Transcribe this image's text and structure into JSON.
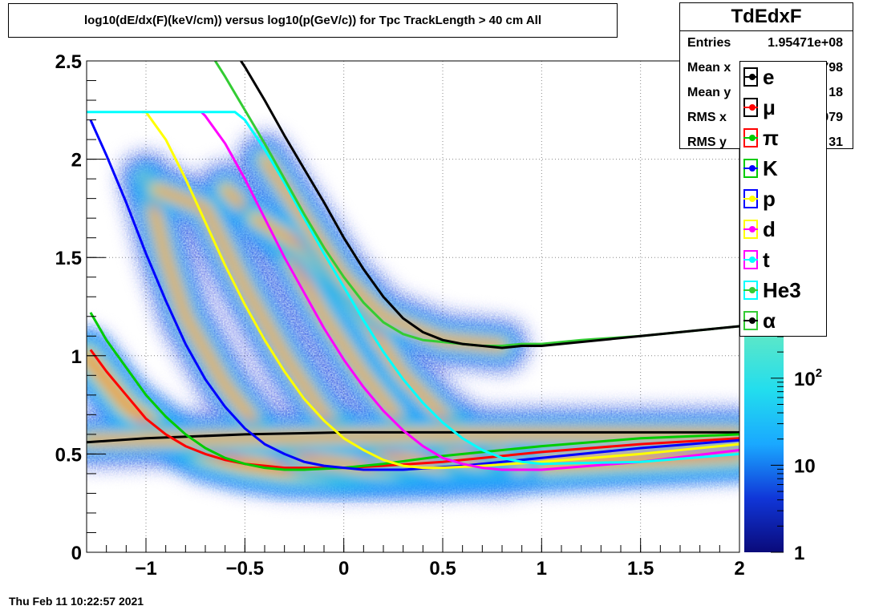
{
  "title": "log10(dE/dx(F)(keV/cm)) versus log10(p(GeV/c)) for Tpc TrackLength > 40 cm All",
  "stats": {
    "name": "TdEdxF",
    "rows": [
      {
        "key": "Entries",
        "value": "1.95471e+08"
      },
      {
        "key": "Mean x",
        "value": "798"
      },
      {
        "key": "Mean y",
        "value": "18"
      },
      {
        "key": "RMS x",
        "value": "979"
      },
      {
        "key": "RMS y",
        "value": "31"
      }
    ]
  },
  "timestamp": "Thu Feb 11 10:22:57 2021",
  "chart_data": {
    "type": "heatmap",
    "title": "log10(dE/dx(F)(keV/cm)) versus log10(p(GeV/c)) for Tpc TrackLength > 40 cm All",
    "xlim": [
      -1.3,
      2.0
    ],
    "ylim": [
      0,
      2.5
    ],
    "x_ticks": [
      {
        "value": -1,
        "label": "−1"
      },
      {
        "value": -0.5,
        "label": "−0.5"
      },
      {
        "value": 0,
        "label": "0"
      },
      {
        "value": 0.5,
        "label": "0.5"
      },
      {
        "value": 1,
        "label": "1"
      },
      {
        "value": 1.5,
        "label": "1.5"
      },
      {
        "value": 2,
        "label": "2"
      }
    ],
    "y_ticks": [
      {
        "value": 0,
        "label": "0"
      },
      {
        "value": 0.5,
        "label": "0.5"
      },
      {
        "value": 1,
        "label": "1"
      },
      {
        "value": 1.5,
        "label": "1.5"
      },
      {
        "value": 2,
        "label": "2"
      },
      {
        "value": 2.5,
        "label": "2.5"
      }
    ],
    "grid": true,
    "z_scale": "log",
    "colorbar_ticks": [
      {
        "value": 1,
        "label": "1"
      },
      {
        "value": 10,
        "label": "10"
      },
      {
        "value": 100,
        "label": "10",
        "sup": "2"
      }
    ],
    "density_bands": [
      {
        "name": "pi",
        "center": [
          [
            -1.3,
            1.0
          ],
          [
            -1.1,
            0.75
          ],
          [
            -0.9,
            0.6
          ],
          [
            -0.7,
            0.5
          ],
          [
            -0.5,
            0.45
          ],
          [
            -0.3,
            0.42
          ],
          [
            0.0,
            0.41
          ],
          [
            0.5,
            0.42
          ],
          [
            1.0,
            0.45
          ],
          [
            2.0,
            0.5
          ]
        ]
      },
      {
        "name": "K",
        "center": [
          [
            -1.0,
            1.9
          ],
          [
            -0.9,
            1.5
          ],
          [
            -0.8,
            1.2
          ],
          [
            -0.6,
            0.85
          ],
          [
            -0.4,
            0.6
          ],
          [
            -0.2,
            0.48
          ],
          [
            0.2,
            0.42
          ],
          [
            0.7,
            0.43
          ]
        ]
      },
      {
        "name": "p",
        "center": [
          [
            -0.95,
            1.85
          ],
          [
            -0.7,
            1.75
          ],
          [
            -0.5,
            1.35
          ],
          [
            -0.3,
            1.0
          ],
          [
            -0.1,
            0.7
          ],
          [
            0.2,
            0.5
          ],
          [
            0.5,
            0.44
          ],
          [
            0.8,
            0.42
          ]
        ]
      },
      {
        "name": "d",
        "center": [
          [
            -0.6,
            1.85
          ],
          [
            -0.3,
            1.55
          ],
          [
            -0.1,
            1.2
          ],
          [
            0.1,
            0.9
          ],
          [
            0.3,
            0.65
          ],
          [
            0.6,
            0.48
          ],
          [
            0.9,
            0.44
          ]
        ]
      },
      {
        "name": "t",
        "center": [
          [
            -0.45,
            1.7
          ],
          [
            -0.2,
            1.55
          ],
          [
            0.1,
            1.2
          ],
          [
            0.3,
            0.9
          ],
          [
            0.5,
            0.7
          ],
          [
            0.8,
            0.5
          ]
        ]
      },
      {
        "name": "He3",
        "center": [
          [
            -0.4,
            2.0
          ],
          [
            -0.2,
            1.7
          ],
          [
            0.0,
            1.4
          ],
          [
            0.2,
            1.2
          ],
          [
            0.5,
            1.08
          ],
          [
            0.8,
            1.05
          ]
        ]
      },
      {
        "name": "e",
        "center": [
          [
            -1.3,
            0.57
          ],
          [
            -0.5,
            0.58
          ],
          [
            0.5,
            0.6
          ],
          [
            2.0,
            0.6
          ]
        ]
      }
    ],
    "series": [
      {
        "name": "e",
        "color": "#000000",
        "x": [
          -1.3,
          -1.0,
          -0.5,
          0.0,
          0.5,
          1.0,
          1.5,
          2.0
        ],
        "y": [
          0.56,
          0.58,
          0.6,
          0.61,
          0.61,
          0.61,
          0.61,
          0.61
        ]
      },
      {
        "name": "μ",
        "color": "#ff0000",
        "x": [
          -1.28,
          -1.2,
          -1.1,
          -1.0,
          -0.9,
          -0.8,
          -0.7,
          -0.6,
          -0.5,
          -0.4,
          -0.3,
          -0.2,
          0.0,
          0.2,
          0.5,
          1.0,
          1.5,
          2.0
        ],
        "y": [
          1.03,
          0.92,
          0.8,
          0.68,
          0.6,
          0.54,
          0.5,
          0.47,
          0.45,
          0.44,
          0.43,
          0.43,
          0.43,
          0.44,
          0.46,
          0.51,
          0.55,
          0.58
        ]
      },
      {
        "name": "π",
        "color": "#00cc00",
        "x": [
          -1.28,
          -1.2,
          -1.1,
          -1.0,
          -0.9,
          -0.8,
          -0.7,
          -0.6,
          -0.5,
          -0.4,
          -0.3,
          -0.2,
          0.0,
          0.2,
          0.5,
          1.0,
          1.5,
          2.0
        ],
        "y": [
          1.22,
          1.08,
          0.94,
          0.8,
          0.69,
          0.6,
          0.53,
          0.48,
          0.45,
          0.43,
          0.42,
          0.42,
          0.43,
          0.45,
          0.49,
          0.54,
          0.58,
          0.6
        ]
      },
      {
        "name": "K",
        "color": "#0000ff",
        "x": [
          -1.28,
          -1.2,
          -1.1,
          -1.0,
          -0.9,
          -0.8,
          -0.7,
          -0.6,
          -0.5,
          -0.4,
          -0.3,
          -0.2,
          -0.1,
          0.0,
          0.1,
          0.3,
          0.6,
          1.0,
          1.5,
          2.0
        ],
        "y": [
          2.2,
          2.02,
          1.78,
          1.52,
          1.28,
          1.06,
          0.88,
          0.74,
          0.63,
          0.55,
          0.5,
          0.46,
          0.44,
          0.43,
          0.42,
          0.42,
          0.44,
          0.48,
          0.53,
          0.57
        ]
      },
      {
        "name": "p",
        "color": "#ffff00",
        "x": [
          -1.02,
          -1.0,
          -0.9,
          -0.8,
          -0.7,
          -0.6,
          -0.5,
          -0.4,
          -0.3,
          -0.2,
          -0.1,
          0.0,
          0.1,
          0.2,
          0.3,
          0.4,
          0.5,
          0.7,
          1.0,
          1.5,
          2.0
        ],
        "y": [
          2.24,
          2.24,
          2.1,
          1.9,
          1.68,
          1.46,
          1.26,
          1.08,
          0.92,
          0.78,
          0.67,
          0.58,
          0.52,
          0.47,
          0.44,
          0.43,
          0.43,
          0.44,
          0.46,
          0.5,
          0.55
        ]
      },
      {
        "name": "d",
        "color": "#ff00ff",
        "x": [
          -0.72,
          -0.7,
          -0.6,
          -0.5,
          -0.4,
          -0.3,
          -0.2,
          -0.1,
          0.0,
          0.1,
          0.2,
          0.3,
          0.4,
          0.5,
          0.6,
          0.7,
          0.8,
          1.0,
          1.5,
          2.0
        ],
        "y": [
          2.24,
          2.22,
          2.08,
          1.9,
          1.7,
          1.5,
          1.32,
          1.14,
          0.98,
          0.84,
          0.72,
          0.62,
          0.54,
          0.48,
          0.45,
          0.43,
          0.42,
          0.42,
          0.46,
          0.52
        ]
      },
      {
        "name": "t",
        "color": "#00ffff",
        "x": [
          -1.3,
          -0.55,
          -0.5,
          -0.4,
          -0.3,
          -0.2,
          -0.1,
          0.0,
          0.1,
          0.2,
          0.3,
          0.4,
          0.5,
          0.6,
          0.7,
          0.8,
          0.9,
          1.0,
          1.5,
          2.0
        ],
        "y": [
          2.24,
          2.24,
          2.2,
          2.05,
          1.88,
          1.7,
          1.52,
          1.35,
          1.18,
          1.02,
          0.88,
          0.76,
          0.66,
          0.58,
          0.52,
          0.48,
          0.46,
          0.45,
          0.46,
          0.5
        ]
      },
      {
        "name": "He3",
        "color": "#33cc33",
        "x": [
          -0.65,
          -0.6,
          -0.5,
          -0.4,
          -0.3,
          -0.2,
          -0.1,
          0.0,
          0.1,
          0.2,
          0.3,
          0.4,
          0.5,
          0.6,
          0.7,
          0.8,
          0.9,
          1.0,
          1.2,
          1.5,
          1.8,
          2.0
        ],
        "y": [
          2.5,
          2.42,
          2.25,
          2.08,
          1.9,
          1.72,
          1.55,
          1.4,
          1.27,
          1.17,
          1.11,
          1.08,
          1.07,
          1.06,
          1.05,
          1.05,
          1.06,
          1.06,
          1.08,
          1.1,
          1.13,
          1.15
        ]
      },
      {
        "name": "α",
        "color": "#000000",
        "x": [
          -0.52,
          -0.5,
          -0.4,
          -0.3,
          -0.2,
          -0.1,
          0.0,
          0.1,
          0.2,
          0.3,
          0.4,
          0.5,
          0.6,
          0.7,
          0.8,
          0.9,
          1.0,
          1.2,
          1.5,
          1.8,
          2.0
        ],
        "y": [
          2.5,
          2.47,
          2.3,
          2.12,
          1.95,
          1.78,
          1.6,
          1.44,
          1.3,
          1.19,
          1.12,
          1.08,
          1.06,
          1.05,
          1.04,
          1.05,
          1.05,
          1.07,
          1.1,
          1.13,
          1.15
        ]
      }
    ],
    "legend": [
      {
        "label": "e",
        "line_color": "#000000",
        "marker_color": "#000000",
        "box_color": "#000000"
      },
      {
        "label": "μ",
        "line_color": "#ff0000",
        "marker_color": "#ff0000",
        "box_color": "#000000"
      },
      {
        "label": "π",
        "line_color": "#00cc00",
        "marker_color": "#00cc00",
        "box_color": "#ff0000"
      },
      {
        "label": "K",
        "line_color": "#0000ff",
        "marker_color": "#0000ff",
        "box_color": "#00cc00"
      },
      {
        "label": "p",
        "line_color": "#ffff00",
        "marker_color": "#ffff00",
        "box_color": "#0000ff"
      },
      {
        "label": "d",
        "line_color": "#ff00ff",
        "marker_color": "#ff00ff",
        "box_color": "#ffff00"
      },
      {
        "label": "t",
        "line_color": "#00ffff",
        "marker_color": "#00ffff",
        "box_color": "#ff00ff"
      },
      {
        "label": "He3",
        "line_color": "#33cc33",
        "marker_color": "#33cc33",
        "box_color": "#00ffff"
      },
      {
        "label": "α",
        "line_color": "#000000",
        "marker_color": "#000000",
        "box_color": "#33cc33"
      }
    ]
  }
}
